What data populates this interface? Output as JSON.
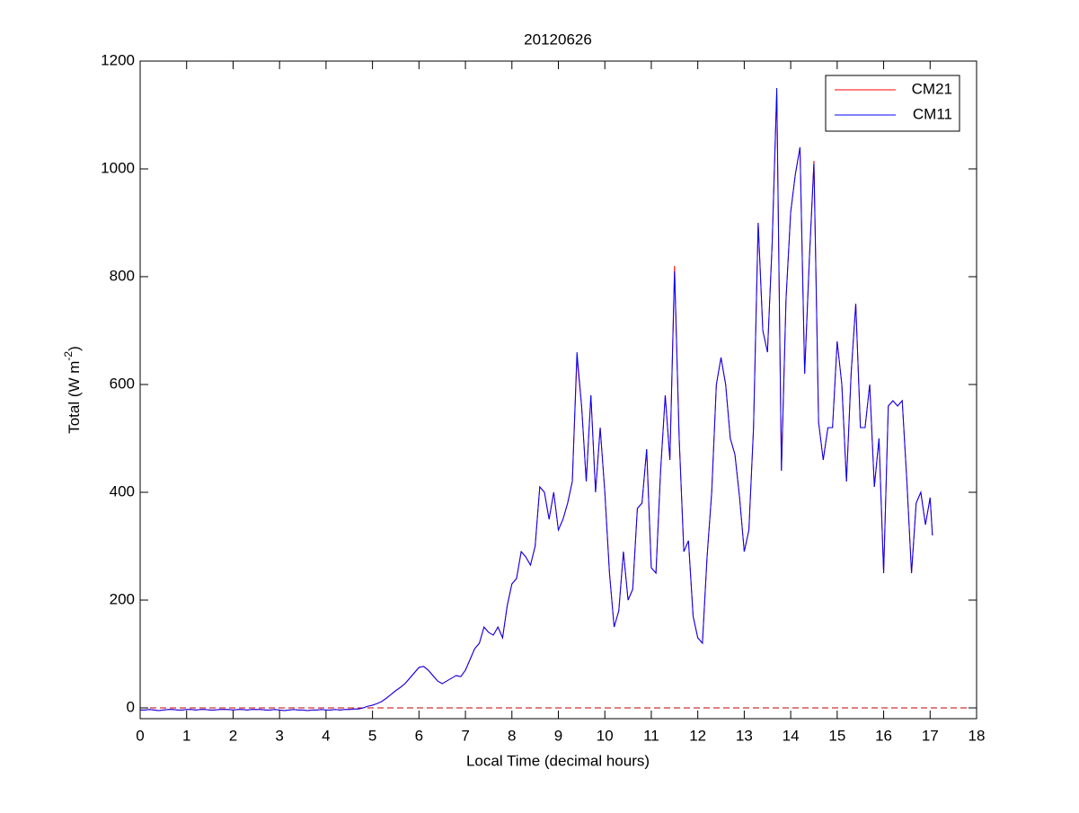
{
  "chart_data": {
    "type": "line",
    "title": "20120626",
    "xlabel": "Local Time (decimal hours)",
    "ylabel": [
      "Total (W m",
      "-2",
      ")"
    ],
    "xlim": [
      0,
      18
    ],
    "xticks": [
      0,
      1,
      2,
      3,
      4,
      5,
      6,
      7,
      8,
      9,
      10,
      11,
      12,
      13,
      14,
      15,
      16,
      17,
      18
    ],
    "ylim": [
      -20,
      1200
    ],
    "yticks": [
      0,
      200,
      400,
      600,
      800,
      1000,
      1200
    ],
    "legend": "upper right",
    "reference_line": {
      "value": 0,
      "color": "#c00000",
      "style": "dashed"
    },
    "x": [
      0,
      0.1,
      0.2,
      0.3,
      0.4,
      0.5,
      0.6,
      0.7,
      0.8,
      0.9,
      1,
      1.1,
      1.2,
      1.3,
      1.4,
      1.5,
      1.6,
      1.7,
      1.8,
      1.9,
      2,
      2.1,
      2.2,
      2.3,
      2.4,
      2.5,
      2.6,
      2.7,
      2.8,
      2.9,
      3,
      3.1,
      3.2,
      3.3,
      3.4,
      3.5,
      3.6,
      3.7,
      3.8,
      3.9,
      4,
      4.1,
      4.2,
      4.3,
      4.4,
      4.5,
      4.6,
      4.7,
      4.8,
      4.9,
      5,
      5.1,
      5.2,
      5.3,
      5.4,
      5.5,
      5.6,
      5.7,
      5.8,
      5.9,
      6,
      6.1,
      6.2,
      6.3,
      6.4,
      6.5,
      6.6,
      6.7,
      6.8,
      6.9,
      7,
      7.1,
      7.2,
      7.3,
      7.4,
      7.5,
      7.6,
      7.7,
      7.8,
      7.9,
      8,
      8.1,
      8.2,
      8.3,
      8.4,
      8.5,
      8.6,
      8.7,
      8.8,
      8.9,
      9,
      9.1,
      9.2,
      9.3,
      9.4,
      9.5,
      9.6,
      9.7,
      9.8,
      9.9,
      10,
      10.1,
      10.2,
      10.3,
      10.4,
      10.5,
      10.6,
      10.7,
      10.8,
      10.9,
      11,
      11.1,
      11.2,
      11.3,
      11.4,
      11.5,
      11.6,
      11.7,
      11.8,
      11.9,
      12,
      12.1,
      12.2,
      12.3,
      12.4,
      12.5,
      12.6,
      12.7,
      12.8,
      12.9,
      13,
      13.1,
      13.2,
      13.3,
      13.4,
      13.5,
      13.6,
      13.7,
      13.8,
      13.9,
      14,
      14.1,
      14.2,
      14.3,
      14.4,
      14.5,
      14.6,
      14.7,
      14.8,
      14.9,
      15,
      15.1,
      15.2,
      15.3,
      15.4,
      15.5,
      15.6,
      15.7,
      15.8,
      15.9,
      16,
      16.1,
      16.2,
      16.3,
      16.4,
      16.5,
      16.6,
      16.7,
      16.8,
      16.9,
      17,
      17.05
    ],
    "series": [
      {
        "name": "CM21",
        "color": "#ff0000",
        "values": [
          -4,
          -4,
          -3,
          -4,
          -5,
          -4,
          -3,
          -3,
          -4,
          -4,
          -3,
          -3,
          -4,
          -3,
          -3,
          -4,
          -4,
          -3,
          -3,
          -3,
          -4,
          -3,
          -3,
          -4,
          -3,
          -3,
          -3,
          -4,
          -4,
          -3,
          -4,
          -5,
          -4,
          -3,
          -4,
          -4,
          -5,
          -4,
          -4,
          -3,
          -4,
          -4,
          -3,
          -4,
          -3,
          -3,
          -2,
          -2,
          0,
          3,
          5,
          8,
          12,
          18,
          25,
          32,
          38,
          45,
          55,
          65,
          75,
          77,
          70,
          60,
          50,
          45,
          50,
          55,
          60,
          58,
          70,
          90,
          110,
          120,
          150,
          140,
          135,
          150,
          130,
          190,
          230,
          240,
          290,
          280,
          265,
          300,
          410,
          400,
          350,
          400,
          330,
          350,
          380,
          420,
          650,
          560,
          420,
          580,
          400,
          520,
          400,
          250,
          150,
          180,
          290,
          200,
          220,
          370,
          380,
          480,
          260,
          250,
          440,
          580,
          460,
          820,
          500,
          290,
          310,
          170,
          130,
          120,
          280,
          400,
          600,
          650,
          600,
          500,
          470,
          390,
          290,
          330,
          520,
          900,
          700,
          660,
          860,
          1140,
          440,
          760,
          920,
          990,
          1040,
          620,
          830,
          1015,
          530,
          460,
          520,
          520,
          680,
          600,
          420,
          620,
          750,
          520,
          520,
          600,
          410,
          500,
          250,
          560,
          570,
          560,
          570,
          420,
          250,
          380,
          400,
          340,
          390,
          320
        ]
      },
      {
        "name": "CM11",
        "color": "#0000ff",
        "values": [
          -4,
          -4,
          -3,
          -4,
          -5,
          -4,
          -3,
          -3,
          -4,
          -4,
          -3,
          -3,
          -4,
          -3,
          -3,
          -4,
          -4,
          -3,
          -3,
          -3,
          -4,
          -3,
          -3,
          -4,
          -3,
          -3,
          -3,
          -4,
          -4,
          -3,
          -4,
          -5,
          -4,
          -3,
          -4,
          -4,
          -5,
          -4,
          -4,
          -3,
          -4,
          -4,
          -3,
          -4,
          -3,
          -3,
          -2,
          -2,
          0,
          3,
          5,
          8,
          12,
          18,
          25,
          32,
          38,
          45,
          55,
          65,
          75,
          77,
          70,
          60,
          50,
          45,
          50,
          55,
          60,
          58,
          70,
          90,
          110,
          120,
          150,
          140,
          135,
          150,
          130,
          190,
          230,
          240,
          290,
          280,
          265,
          300,
          410,
          400,
          350,
          400,
          330,
          350,
          380,
          420,
          660,
          560,
          420,
          580,
          400,
          520,
          400,
          250,
          150,
          180,
          290,
          200,
          220,
          370,
          380,
          480,
          260,
          250,
          440,
          580,
          460,
          810,
          500,
          290,
          310,
          170,
          130,
          120,
          280,
          400,
          600,
          650,
          600,
          500,
          470,
          390,
          290,
          330,
          520,
          900,
          700,
          660,
          860,
          1150,
          440,
          760,
          920,
          990,
          1040,
          620,
          830,
          1010,
          530,
          460,
          520,
          520,
          680,
          600,
          420,
          620,
          750,
          520,
          520,
          600,
          410,
          500,
          250,
          560,
          570,
          560,
          570,
          420,
          250,
          380,
          400,
          340,
          390,
          320
        ]
      }
    ]
  }
}
